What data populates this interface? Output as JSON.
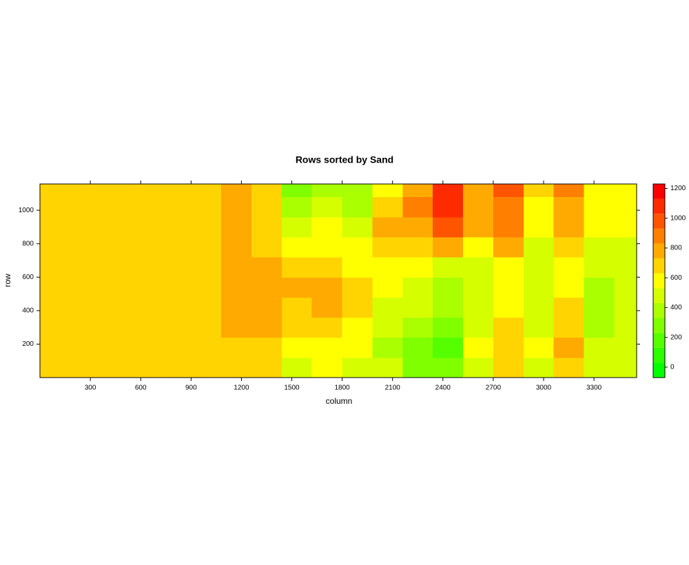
{
  "chart_data": {
    "type": "heatmap",
    "title": "Rows sorted by Sand",
    "xlabel": "column",
    "ylabel": "row",
    "xlim": [
      0,
      3554
    ],
    "ylim": [
      0,
      1157
    ],
    "xticks": [
      300,
      600,
      900,
      1200,
      1500,
      1800,
      2100,
      2400,
      2700,
      3000,
      3300
    ],
    "yticks": [
      200,
      400,
      600,
      800,
      1000
    ],
    "x_bins": [
      0,
      180,
      360,
      540,
      720,
      900,
      1080,
      1260,
      1440,
      1620,
      1800,
      1980,
      2160,
      2340,
      2520,
      2700,
      2880,
      3060,
      3240,
      3420,
      3554
    ],
    "y_bins": [
      0,
      120,
      240,
      360,
      480,
      600,
      720,
      840,
      960,
      1080,
      1157
    ],
    "z": [
      [
        650,
        640,
        660,
        650,
        640,
        630,
        700,
        650,
        500,
        550,
        520,
        450,
        300,
        250,
        500,
        650,
        500,
        700,
        450,
        500
      ],
      [
        680,
        660,
        650,
        640,
        650,
        640,
        720,
        700,
        550,
        600,
        560,
        400,
        300,
        200,
        550,
        700,
        550,
        750,
        450,
        480
      ],
      [
        700,
        680,
        690,
        670,
        660,
        650,
        760,
        780,
        650,
        700,
        620,
        450,
        380,
        300,
        500,
        650,
        500,
        700,
        420,
        450
      ],
      [
        690,
        680,
        680,
        660,
        670,
        650,
        780,
        800,
        720,
        760,
        680,
        500,
        450,
        350,
        450,
        600,
        450,
        650,
        400,
        450
      ],
      [
        700,
        690,
        680,
        670,
        680,
        660,
        800,
        820,
        760,
        800,
        700,
        550,
        500,
        400,
        430,
        550,
        450,
        600,
        400,
        430
      ],
      [
        680,
        670,
        660,
        660,
        660,
        650,
        780,
        760,
        650,
        700,
        600,
        600,
        550,
        500,
        450,
        600,
        500,
        600,
        450,
        450
      ],
      [
        690,
        670,
        650,
        650,
        650,
        640,
        750,
        720,
        550,
        600,
        550,
        700,
        650,
        750,
        600,
        750,
        500,
        700,
        500,
        500
      ],
      [
        700,
        680,
        670,
        660,
        660,
        650,
        750,
        700,
        450,
        550,
        500,
        750,
        750,
        950,
        750,
        850,
        550,
        750,
        550,
        550
      ],
      [
        700,
        680,
        660,
        650,
        660,
        640,
        800,
        700,
        350,
        450,
        400,
        700,
        850,
        1100,
        800,
        900,
        600,
        800,
        550,
        550
      ],
      [
        680,
        680,
        660,
        650,
        660,
        650,
        780,
        650,
        300,
        350,
        350,
        600,
        800,
        1100,
        800,
        950,
        650,
        850,
        600,
        550
      ]
    ],
    "color_breaks": [
      -70,
      30,
      130,
      230,
      330,
      430,
      530,
      630,
      730,
      830,
      930,
      1030,
      1130,
      1230
    ],
    "color_stops": [
      "#00ff00",
      "#ffff00",
      "#ff0000"
    ],
    "zticks": [
      0,
      200,
      400,
      600,
      800,
      1000,
      1200
    ]
  }
}
